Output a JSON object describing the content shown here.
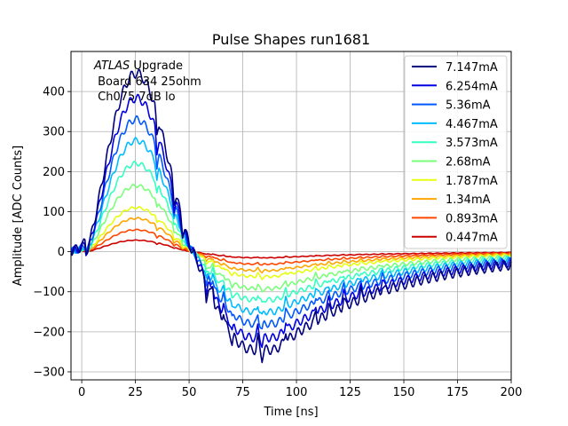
{
  "chart_data": {
    "type": "line",
    "title": "Pulse Shapes run1681",
    "xlabel": "Time [ns]",
    "ylabel": "Amplitude [ADC Counts]",
    "xlim": [
      -5,
      200
    ],
    "ylim": [
      -320,
      500
    ],
    "grid": true,
    "x_ticks": [
      0,
      25,
      50,
      75,
      100,
      125,
      150,
      175,
      200
    ],
    "y_ticks": [
      -300,
      -200,
      -100,
      0,
      100,
      200,
      300,
      400
    ],
    "annotation": {
      "italic": "ATLAS",
      "rest": " Upgrade",
      "line2": " Board 634 25ohm",
      "line3": " Ch075 7dB lo"
    },
    "legend_position": "top-right",
    "series": [
      {
        "name": "7.147mA",
        "color": "#00007f",
        "peak": 465,
        "trough": -245
      },
      {
        "name": "6.254mA",
        "color": "#0000e2",
        "peak": 400,
        "trough": -215
      },
      {
        "name": "5.36mA",
        "color": "#0058ff",
        "peak": 345,
        "trough": -180
      },
      {
        "name": "4.467mA",
        "color": "#00bcff",
        "peak": 290,
        "trough": -150
      },
      {
        "name": "3.573mA",
        "color": "#35ffc1",
        "peak": 230,
        "trough": -120
      },
      {
        "name": "2.68mA",
        "color": "#7bff7b",
        "peak": 172,
        "trough": -92
      },
      {
        "name": "1.787mA",
        "color": "#e5ff11",
        "peak": 115,
        "trough": -62
      },
      {
        "name": "1.34mA",
        "color": "#ffa600",
        "peak": 87,
        "trough": -47
      },
      {
        "name": "0.893mA",
        "color": "#ff4700",
        "peak": 57,
        "trough": -31
      },
      {
        "name": "0.447mA",
        "color": "#cc0000",
        "peak": 30,
        "trough": -15
      }
    ]
  }
}
